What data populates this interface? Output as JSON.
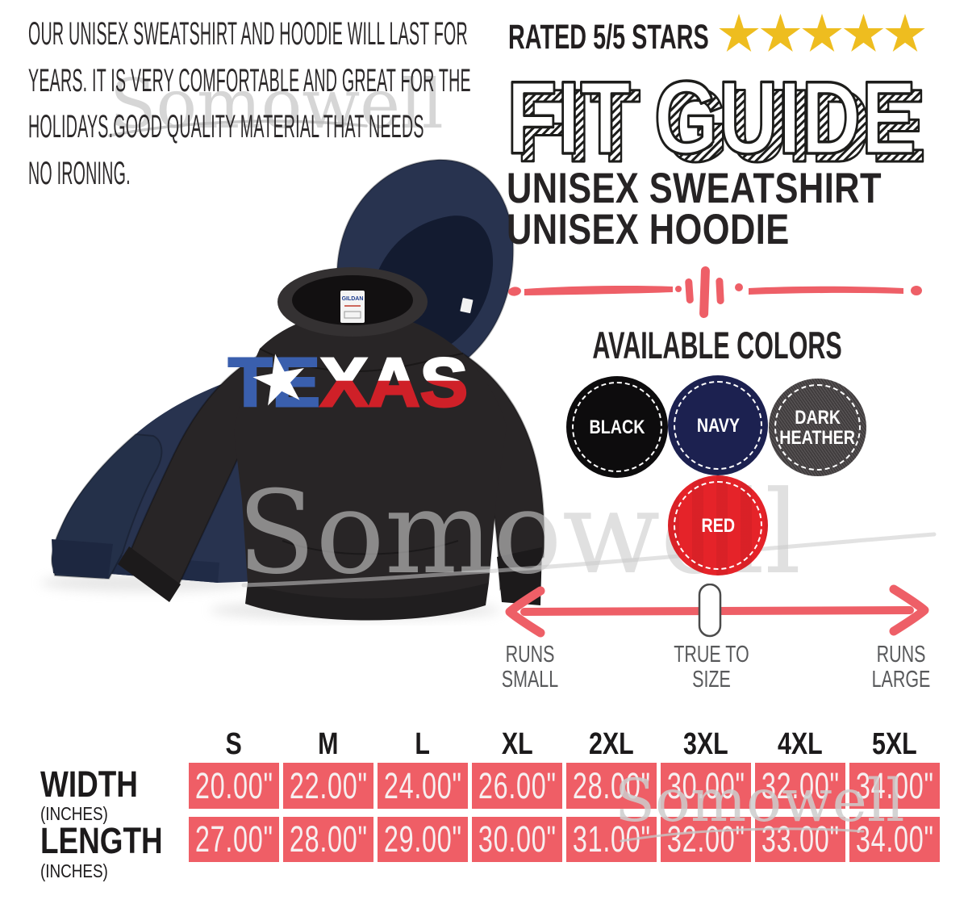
{
  "theme": {
    "coral": "#ee5f67",
    "gold": "#eebd1f",
    "ink": "#231f20",
    "cell_red": "#ef5e66",
    "navy_garment": "#28334f",
    "black_garment": "#282526",
    "texas_blue": "#3a5fad",
    "texas_red": "#cf2028",
    "watermark_gray": "#cdcdcd",
    "label_gray": "#58595b"
  },
  "watermark": {
    "text": "Somowell"
  },
  "description": {
    "lines": [
      "OUR UNISEX SWEATSHIRT AND HOODIE WILL LAST FOR",
      "YEARS. IT IS VERY COMFORTABLE AND GREAT FOR THE",
      "HOLIDAYS.GOOD QUALITY MATERIAL THAT NEEDS",
      "NO IRONING."
    ]
  },
  "rating": {
    "label": "RATED 5/5 STARS",
    "stars_count": 5
  },
  "fit_guide": {
    "title": "FIT GUIDE",
    "product_line_1": "UNISEX SWEATSHIRT",
    "product_line_2": "UNISEX HOODIE"
  },
  "product_print": {
    "te": "TE",
    "xas": "XAS"
  },
  "brand_tag": {
    "text": "GILDAN"
  },
  "available_colors": {
    "heading": "AVAILABLE COLORS",
    "options": [
      {
        "name": "BLACK",
        "swatch": "#0d0c0d",
        "label_lines": [
          "BLACK"
        ],
        "texture": ""
      },
      {
        "name": "NAVY",
        "swatch": "#1c2150",
        "label_lines": [
          "NAVY"
        ],
        "texture": ""
      },
      {
        "name": "DARK HEATHER",
        "swatch": "#454142",
        "label_lines": [
          "DARK",
          "HEATHER"
        ],
        "texture": "heather"
      },
      {
        "name": "RED",
        "swatch": "#e52329",
        "label_lines": [
          "RED"
        ],
        "texture": "folds"
      }
    ]
  },
  "fit_scale": {
    "left": [
      "RUNS",
      "SMALL"
    ],
    "center": [
      "TRUE TO",
      "SIZE"
    ],
    "right": [
      "RUNS",
      "LARGE"
    ]
  },
  "size_chart": {
    "sizes": [
      "S",
      "M",
      "L",
      "XL",
      "2XL",
      "3XL",
      "4XL",
      "5XL"
    ],
    "rows": [
      {
        "label": "WIDTH",
        "unit": "(INCHES)",
        "values": [
          "20.00\"",
          "22.00\"",
          "24.00\"",
          "26.00\"",
          "28.00\"",
          "30.00\"",
          "32.00\"",
          "34.00\""
        ]
      },
      {
        "label": "LENGTH",
        "unit": "(INCHES)",
        "values": [
          "27.00\"",
          "28.00\"",
          "29.00\"",
          "30.00\"",
          "31.00\"",
          "32.00\"",
          "33.00\"",
          "34.00\""
        ]
      }
    ]
  }
}
